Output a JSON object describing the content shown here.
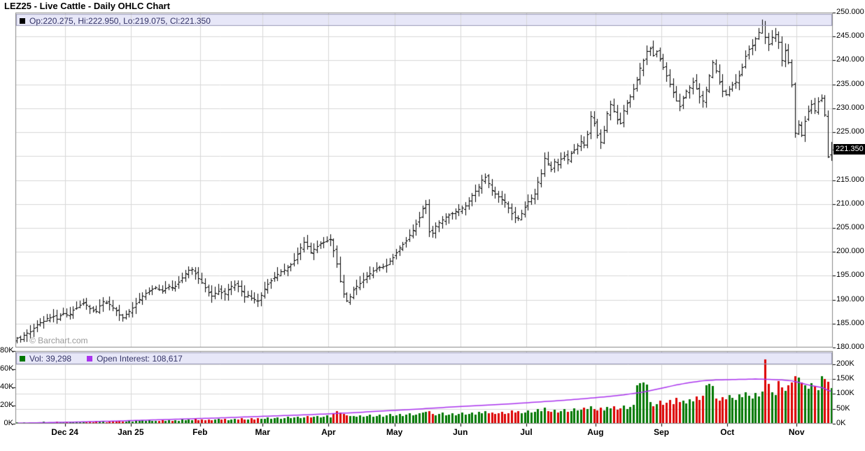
{
  "page_title": "LEZ25 - Live Cattle - Daily OHLC Chart",
  "watermark": "© Barchart.com",
  "price_legend": {
    "swatch": "black-square-icon",
    "text": "Op:220.275, Hi:222.950, Lo:219.075, Cl:221.350"
  },
  "volume_legend": {
    "vol_swatch": "green-square-icon",
    "vol_text": "Vol: 39,298",
    "oi_swatch": "purple-square-icon",
    "oi_text": "Open Interest: 108,617"
  },
  "last_price_label": "221.350",
  "colors": {
    "bar": "#000000",
    "up_volume": "#007700",
    "down_volume": "#dd0000",
    "open_interest_line": "#aa33ee",
    "grid": "#d8d8d8",
    "panel_border": "#888888",
    "band_bg": "#e7e7f8",
    "band_border": "#9a9ab8",
    "legend_text": "#333366",
    "axis_text": "#000000",
    "watermark": "#999999",
    "price_label_bg": "#000000",
    "price_label_text": "#ffffff"
  },
  "y_axis_labels": [
    {
      "text": "250.000",
      "value": 250
    },
    {
      "text": "245.000",
      "value": 245
    },
    {
      "text": "240.000",
      "value": 240
    },
    {
      "text": "235.000",
      "value": 235
    },
    {
      "text": "230.000",
      "value": 230
    },
    {
      "text": "225.000",
      "value": 225
    },
    {
      "text": "215.000",
      "value": 215
    },
    {
      "text": "210.000",
      "value": 210
    },
    {
      "text": "205.000",
      "value": 205
    },
    {
      "text": "200.000",
      "value": 200
    },
    {
      "text": "195.000",
      "value": 195
    },
    {
      "text": "190.000",
      "value": 190
    },
    {
      "text": "185.000",
      "value": 185
    },
    {
      "text": "180.000",
      "value": 180
    }
  ],
  "volume_axis": {
    "left": [
      {
        "text": "80K",
        "value": 80
      },
      {
        "text": "60K",
        "value": 60
      },
      {
        "text": "40K",
        "value": 40
      },
      {
        "text": "20K",
        "value": 20
      },
      {
        "text": "0K",
        "value": 0
      }
    ],
    "right": [
      {
        "text": "200K",
        "value": 200
      },
      {
        "text": "150K",
        "value": 150
      },
      {
        "text": "100K",
        "value": 100
      },
      {
        "text": "50K",
        "value": 50
      },
      {
        "text": "0K",
        "value": 0
      }
    ]
  },
  "x_axis_labels": [
    {
      "text": "Dec 24",
      "day": 15
    },
    {
      "text": "Jan 25",
      "day": 35
    },
    {
      "text": "Feb",
      "day": 56
    },
    {
      "text": "Mar",
      "day": 75
    },
    {
      "text": "Apr",
      "day": 95
    },
    {
      "text": "May",
      "day": 115
    },
    {
      "text": "Jun",
      "day": 135
    },
    {
      "text": "Jul",
      "day": 155
    },
    {
      "text": "Aug",
      "day": 176
    },
    {
      "text": "Sep",
      "day": 196
    },
    {
      "text": "Oct",
      "day": 216
    },
    {
      "text": "Nov",
      "day": 237
    }
  ],
  "chart_data": {
    "type": "ohlc",
    "title": "LEZ25 - Live Cattle - Daily OHLC Chart",
    "y_range": [
      180,
      250
    ],
    "y_step": 5,
    "x_range_label": "Nov 2024 - Nov 2025 (daily bars)",
    "grid": true,
    "legend_position": "top-left band",
    "last_bar": {
      "open": 220.275,
      "high": 222.95,
      "low": 219.075,
      "close": 221.35
    },
    "latest_volume": 39298,
    "latest_open_interest": 108617,
    "closes": [
      182.0,
      181.7,
      182.6,
      183.1,
      183.3,
      184.1,
      184.8,
      185.2,
      185.6,
      186.1,
      186.3,
      186.6,
      186.0,
      186.7,
      187.2,
      186.8,
      187.0,
      187.9,
      188.3,
      188.9,
      189.3,
      188.9,
      188.2,
      187.8,
      187.6,
      188.7,
      189.6,
      189.4,
      189.0,
      188.3,
      187.8,
      186.9,
      186.3,
      187.0,
      187.6,
      188.4,
      189.2,
      190.1,
      190.8,
      191.4,
      191.8,
      192.3,
      192.6,
      192.1,
      191.8,
      192.4,
      192.8,
      192.5,
      192.9,
      193.8,
      194.6,
      195.5,
      196.2,
      196.4,
      195.5,
      194.4,
      193.6,
      192.6,
      191.6,
      190.8,
      191.4,
      191.9,
      191.5,
      191.3,
      192.1,
      192.8,
      193.1,
      192.9,
      191.8,
      190.6,
      190.9,
      190.4,
      190.1,
      189.8,
      191.0,
      192.3,
      193.3,
      194.1,
      194.8,
      195.4,
      195.9,
      196.2,
      196.8,
      197.4,
      198.3,
      199.6,
      200.9,
      202.1,
      201.2,
      199.9,
      200.6,
      201.2,
      201.8,
      202.1,
      202.4,
      202.6,
      200.3,
      197.6,
      193.9,
      191.2,
      189.8,
      190.6,
      192.1,
      192.8,
      193.4,
      194.2,
      194.9,
      195.5,
      196.1,
      196.5,
      196.8,
      197.0,
      197.3,
      198.1,
      198.9,
      199.9,
      200.9,
      201.7,
      202.4,
      203.5,
      204.6,
      205.9,
      207.2,
      209.1,
      209.9,
      204.3,
      203.9,
      205.4,
      206.2,
      206.8,
      207.4,
      207.8,
      208.1,
      208.5,
      208.9,
      209.2,
      209.6,
      210.7,
      211.9,
      212.8,
      213.6,
      215.1,
      215.6,
      214.4,
      212.9,
      212.2,
      211.6,
      211.0,
      210.4,
      209.3,
      208.1,
      207.2,
      207.0,
      208.1,
      209.4,
      210.6,
      211.3,
      212.1,
      214.6,
      216.4,
      219.6,
      218.4,
      217.3,
      218.9,
      218.3,
      219.4,
      220.1,
      219.3,
      220.6,
      221.4,
      222.3,
      223.1,
      222.4,
      224.6,
      228.4,
      226.9,
      224.4,
      222.9,
      225.4,
      228.9,
      230.9,
      229.4,
      227.6,
      226.9,
      229.6,
      231.1,
      232.4,
      234.1,
      235.9,
      238.4,
      240.1,
      241.9,
      242.6,
      241.1,
      241.9,
      240.4,
      238.6,
      236.9,
      235.1,
      233.4,
      231.6,
      230.4,
      232.1,
      233.6,
      234.4,
      235.6,
      234.1,
      232.4,
      231.6,
      233.9,
      236.9,
      239.6,
      237.9,
      235.6,
      233.6,
      232.9,
      234.1,
      234.9,
      235.6,
      236.9,
      238.6,
      240.9,
      242.4,
      243.1,
      244.6,
      245.9,
      247.4,
      244.9,
      243.4,
      244.9,
      245.4,
      243.9,
      240.1,
      242.1,
      239.6,
      234.9,
      224.9,
      226.6,
      224.4,
      227.4,
      229.4,
      230.9,
      229.6,
      231.4,
      232.1,
      228.6,
      219.9,
      221.35
    ],
    "volumes_k": [
      1.2,
      0.8,
      1.5,
      1.0,
      1.8,
      1.1,
      1.6,
      1.3,
      2.0,
      1.4,
      1.9,
      1.2,
      2.2,
      1.5,
      1.8,
      1.3,
      2.4,
      1.6,
      2.1,
      1.8,
      2.6,
      1.9,
      2.3,
      1.7,
      2.8,
      2.0,
      2.5,
      1.8,
      2.2,
      2.9,
      2.4,
      3.1,
      2.6,
      2.2,
      3.0,
      2.5,
      3.3,
      2.7,
      3.5,
      2.9,
      3.8,
      3.0,
      3.4,
      2.8,
      4.0,
      3.2,
      3.6,
      3.0,
      4.2,
      3.4,
      4.5,
      3.6,
      4.8,
      3.9,
      5.2,
      4.2,
      4.6,
      3.8,
      5.0,
      4.1,
      4.4,
      5.4,
      4.3,
      5.1,
      4.0,
      4.7,
      5.6,
      4.4,
      5.8,
      4.6,
      5.0,
      6.1,
      4.8,
      6.4,
      5.2,
      5.5,
      6.8,
      5.4,
      6.0,
      7.2,
      5.7,
      6.3,
      7.6,
      6.0,
      6.6,
      8.0,
      6.3,
      7.0,
      8.4,
      6.6,
      7.4,
      8.8,
      7.0,
      7.7,
      9.2,
      7.3,
      10.5,
      13.8,
      12.4,
      11.0,
      9.6,
      8.2,
      8.8,
      7.4,
      9.4,
      7.8,
      8.4,
      9.8,
      7.6,
      8.6,
      10.2,
      8.0,
      9.0,
      10.6,
      8.4,
      9.4,
      11.0,
      8.8,
      9.8,
      11.4,
      9.2,
      10.2,
      11.8,
      12.6,
      13.4,
      14.2,
      11.0,
      9.6,
      10.6,
      12.2,
      9.0,
      10.0,
      11.6,
      9.4,
      10.4,
      12.0,
      9.8,
      10.8,
      12.4,
      10.2,
      13.0,
      11.2,
      14.0,
      11.6,
      12.6,
      10.4,
      11.4,
      13.2,
      10.8,
      11.8,
      14.4,
      12.0,
      13.6,
      11.2,
      12.2,
      14.8,
      12.4,
      13.4,
      16.0,
      13.8,
      17.4,
      14.2,
      12.8,
      15.2,
      12.6,
      13.6,
      16.4,
      13.0,
      14.0,
      16.8,
      14.4,
      15.4,
      18.0,
      15.8,
      19.2,
      16.2,
      14.8,
      17.6,
      15.0,
      18.8,
      16.6,
      19.6,
      15.4,
      17.2,
      20.0,
      16.0,
      18.4,
      21.0,
      42.0,
      44.8,
      45.6,
      43.2,
      24.0,
      19.4,
      21.6,
      25.2,
      20.4,
      22.8,
      26.0,
      21.2,
      28.4,
      23.6,
      25.6,
      22.0,
      27.2,
      24.4,
      30.0,
      26.4,
      30.4,
      42.4,
      44.0,
      41.6,
      28.0,
      25.2,
      29.6,
      26.8,
      31.2,
      28.8,
      26.0,
      32.0,
      29.2,
      34.4,
      30.4,
      27.6,
      33.6,
      30.0,
      35.2,
      70.4,
      44.0,
      34.8,
      31.2,
      47.2,
      40.0,
      36.0,
      42.4,
      45.6,
      52.0,
      50.4,
      45.6,
      42.0,
      38.4,
      44.8,
      40.8,
      36.8,
      52.0,
      49.6,
      46.4,
      39.298
    ],
    "open_interest_anchors_k": [
      [
        0,
        2
      ],
      [
        15,
        5
      ],
      [
        30,
        9
      ],
      [
        45,
        14
      ],
      [
        60,
        19
      ],
      [
        75,
        25
      ],
      [
        90,
        31
      ],
      [
        100,
        36
      ],
      [
        110,
        42
      ],
      [
        120,
        48
      ],
      [
        127,
        53
      ],
      [
        135,
        58
      ],
      [
        142,
        62
      ],
      [
        150,
        67
      ],
      [
        157,
        72
      ],
      [
        165,
        78
      ],
      [
        172,
        84
      ],
      [
        178,
        90
      ],
      [
        184,
        97
      ],
      [
        190,
        106
      ],
      [
        195,
        118
      ],
      [
        200,
        130
      ],
      [
        204,
        138
      ],
      [
        208,
        144
      ],
      [
        212,
        147
      ],
      [
        216,
        148
      ],
      [
        220,
        149
      ],
      [
        224,
        150
      ],
      [
        228,
        149
      ],
      [
        232,
        147
      ],
      [
        235,
        144
      ],
      [
        237,
        139
      ],
      [
        239,
        133
      ],
      [
        241,
        128
      ],
      [
        243,
        124
      ],
      [
        244,
        122
      ],
      [
        245,
        118
      ],
      [
        246,
        112
      ],
      [
        247,
        109
      ]
    ],
    "volume_left_scale_k": [
      0,
      80
    ],
    "volume_right_scale_k": [
      0,
      244
    ]
  }
}
